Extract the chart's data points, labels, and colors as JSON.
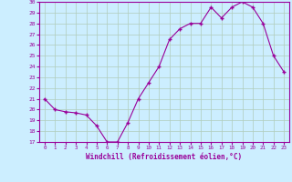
{
  "x": [
    0,
    1,
    2,
    3,
    4,
    5,
    6,
    7,
    8,
    9,
    10,
    11,
    12,
    13,
    14,
    15,
    16,
    17,
    18,
    19,
    20,
    21,
    22,
    23
  ],
  "y": [
    21.0,
    20.0,
    19.8,
    19.7,
    19.5,
    18.5,
    17.0,
    17.0,
    18.8,
    21.0,
    22.5,
    24.0,
    26.5,
    27.5,
    28.0,
    28.0,
    29.5,
    28.5,
    29.5,
    30.0,
    29.5,
    28.0,
    25.0,
    23.5
  ],
  "ylim": [
    17,
    30
  ],
  "yticks": [
    17,
    18,
    19,
    20,
    21,
    22,
    23,
    24,
    25,
    26,
    27,
    28,
    29,
    30
  ],
  "xticks": [
    0,
    1,
    2,
    3,
    4,
    5,
    6,
    7,
    8,
    9,
    10,
    11,
    12,
    13,
    14,
    15,
    16,
    17,
    18,
    19,
    20,
    21,
    22,
    23
  ],
  "xlabel": "Windchill (Refroidissement éolien,°C)",
  "line_color": "#990099",
  "marker": "+",
  "bg_color": "#cceeff",
  "grid_color": "#b0ccbb",
  "tick_color": "#990099",
  "xlabel_color": "#990099",
  "spine_color": "#990099"
}
